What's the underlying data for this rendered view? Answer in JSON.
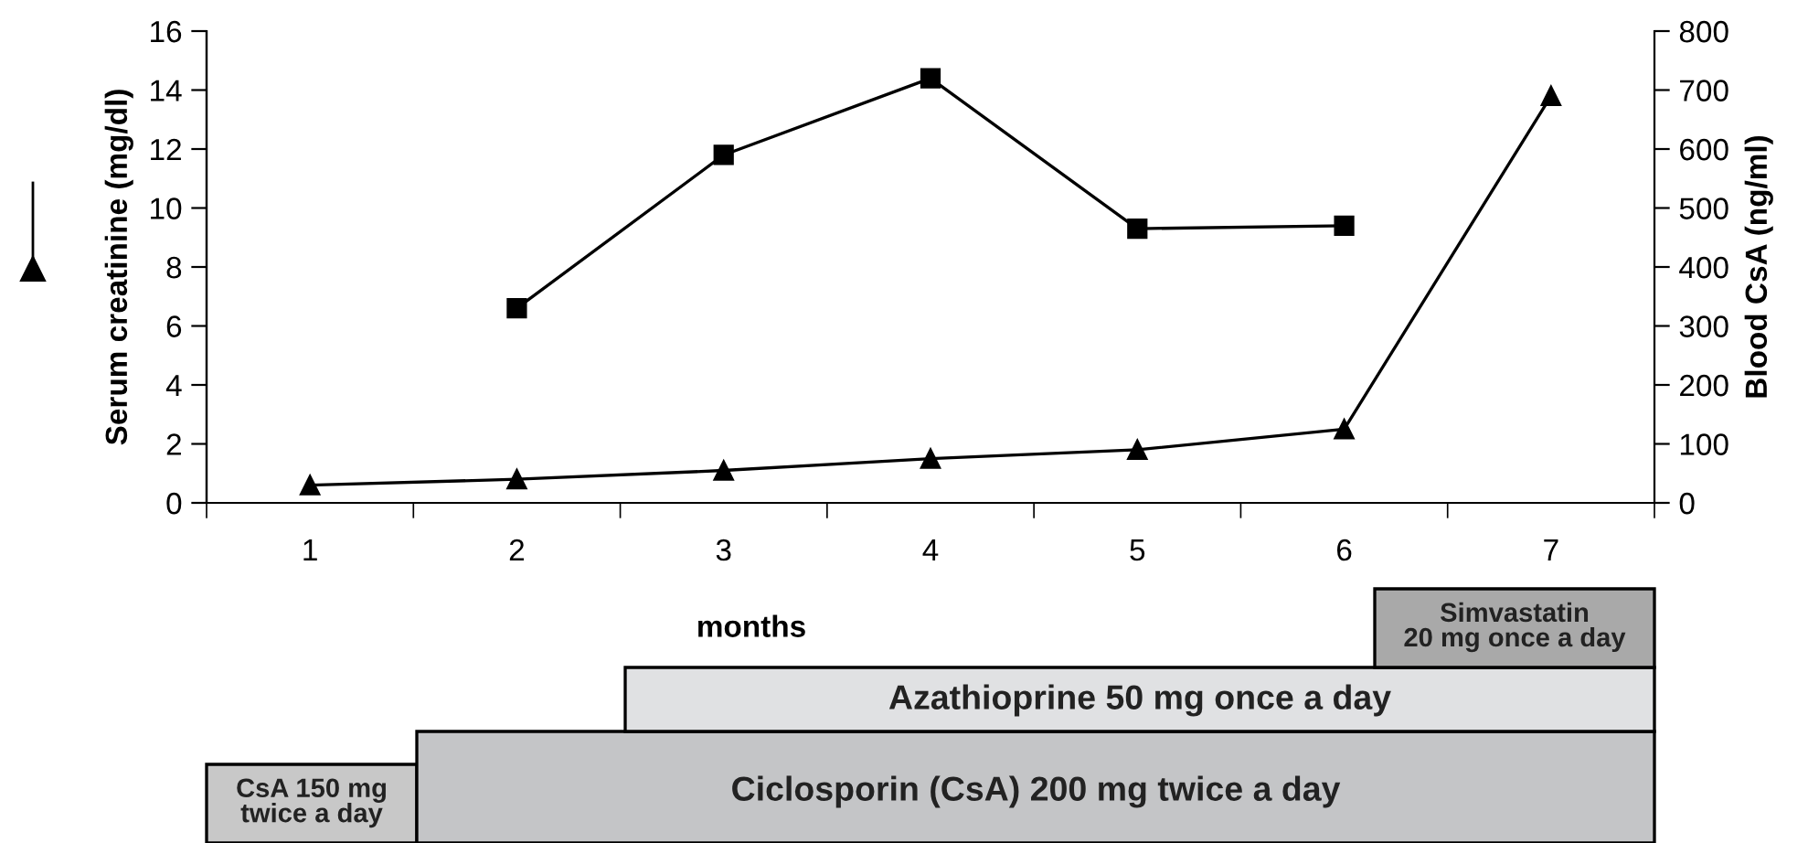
{
  "chart_data": {
    "type": "line",
    "xlabel": "months",
    "ylabel": "Serum creatinine (mg/dl)",
    "y2label": "Blood CsA (ng/ml)",
    "x": [
      1,
      2,
      3,
      4,
      5,
      6,
      7
    ],
    "xlim": [
      0.5,
      7.5
    ],
    "xticks": [
      1,
      2,
      3,
      4,
      5,
      6,
      7
    ],
    "ylim": [
      0,
      16
    ],
    "yticks": [
      0,
      2,
      4,
      6,
      8,
      10,
      12,
      14,
      16
    ],
    "y2lim": [
      0,
      800
    ],
    "y2ticks": [
      0,
      100,
      200,
      300,
      400,
      500,
      600,
      700,
      800
    ],
    "series": [
      {
        "color": "#000000",
        "marker": "triangle",
        "values": [
          0.6,
          0.8,
          1.1,
          1.5,
          1.8,
          2.5,
          13.8
        ]
      },
      {
        "color": "#000000",
        "marker": "square",
        "axis": "y2",
        "values": [
          null,
          330,
          590,
          720,
          465,
          470,
          null
        ]
      }
    ],
    "annotations": [
      "CsA 150 mg\ntwice a day",
      "Ciclosporin (CsA) 200 mg twice a day",
      "Azathioprine 50 mg once a day",
      "Simvastatin\n20 mg once a day"
    ],
    "grid": false,
    "legend": false,
    "line_style": "solid"
  }
}
